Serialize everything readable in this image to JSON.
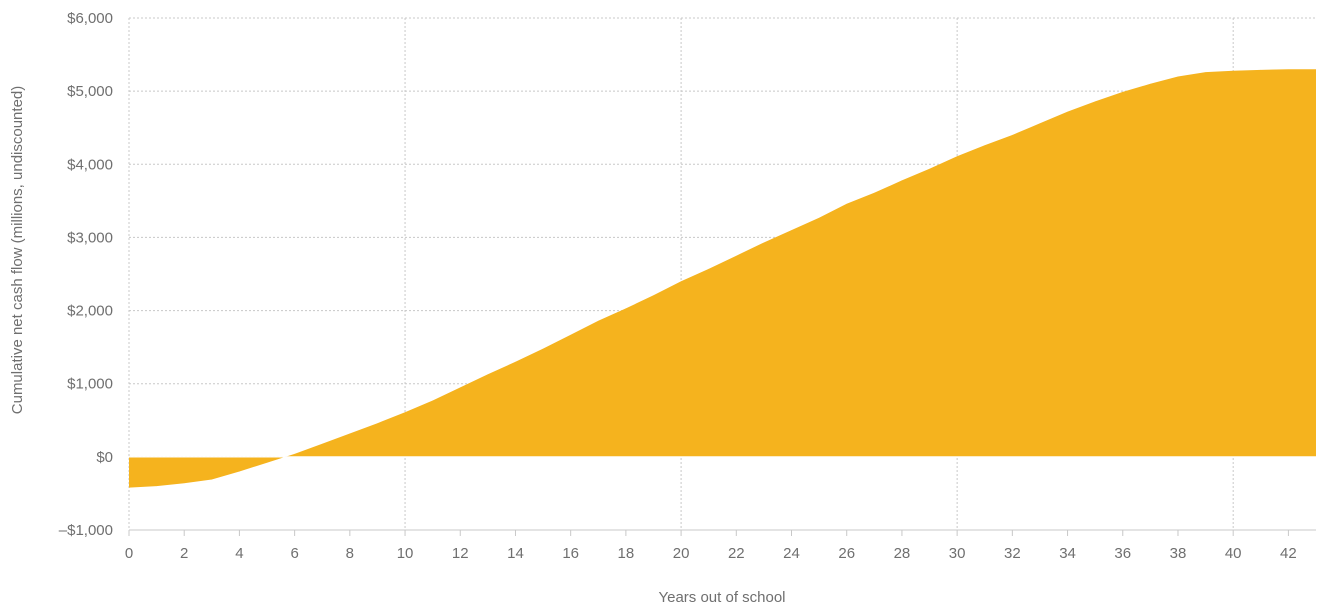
{
  "chart_data": {
    "type": "area",
    "title": "",
    "xlabel": "Years out of school",
    "ylabel": "Cumulative net cash flow (millions, undiscounted)",
    "xlim": [
      0,
      43
    ],
    "ylim": [
      -1000,
      6000
    ],
    "x_ticks": [
      0,
      2,
      4,
      6,
      8,
      10,
      12,
      14,
      16,
      18,
      20,
      22,
      24,
      26,
      28,
      30,
      32,
      34,
      36,
      38,
      40,
      42
    ],
    "x_tick_labels": [
      "0",
      "2",
      "4",
      "6",
      "8",
      "10",
      "12",
      "14",
      "16",
      "18",
      "20",
      "22",
      "24",
      "26",
      "28",
      "30",
      "32",
      "34",
      "36",
      "38",
      "40",
      "42"
    ],
    "y_ticks": [
      -1000,
      0,
      1000,
      2000,
      3000,
      4000,
      5000,
      6000
    ],
    "y_tick_labels": [
      "–$1,000",
      "$0",
      "$1,000",
      "$2,000",
      "$3,000",
      "$4,000",
      "$5,000",
      "$6,000"
    ],
    "grid": true,
    "color": "#F5B31E",
    "series": [
      {
        "x": [
          0,
          1,
          2,
          3,
          4,
          5,
          6,
          7,
          8,
          9,
          10,
          11,
          12,
          13,
          14,
          15,
          16,
          17,
          18,
          19,
          20,
          21,
          22,
          23,
          24,
          25,
          26,
          27,
          28,
          29,
          30,
          31,
          32,
          33,
          34,
          35,
          36,
          37,
          38,
          39,
          40,
          41,
          42,
          43
        ],
        "values": [
          -420,
          -400,
          -360,
          -310,
          -200,
          -80,
          40,
          180,
          320,
          460,
          610,
          770,
          950,
          1130,
          1300,
          1480,
          1670,
          1860,
          2030,
          2210,
          2400,
          2570,
          2750,
          2930,
          3100,
          3270,
          3460,
          3610,
          3780,
          3940,
          4110,
          4260,
          4400,
          4560,
          4720,
          4860,
          4990,
          5100,
          5200,
          5260,
          5280,
          5290,
          5300,
          5300
        ]
      }
    ]
  }
}
